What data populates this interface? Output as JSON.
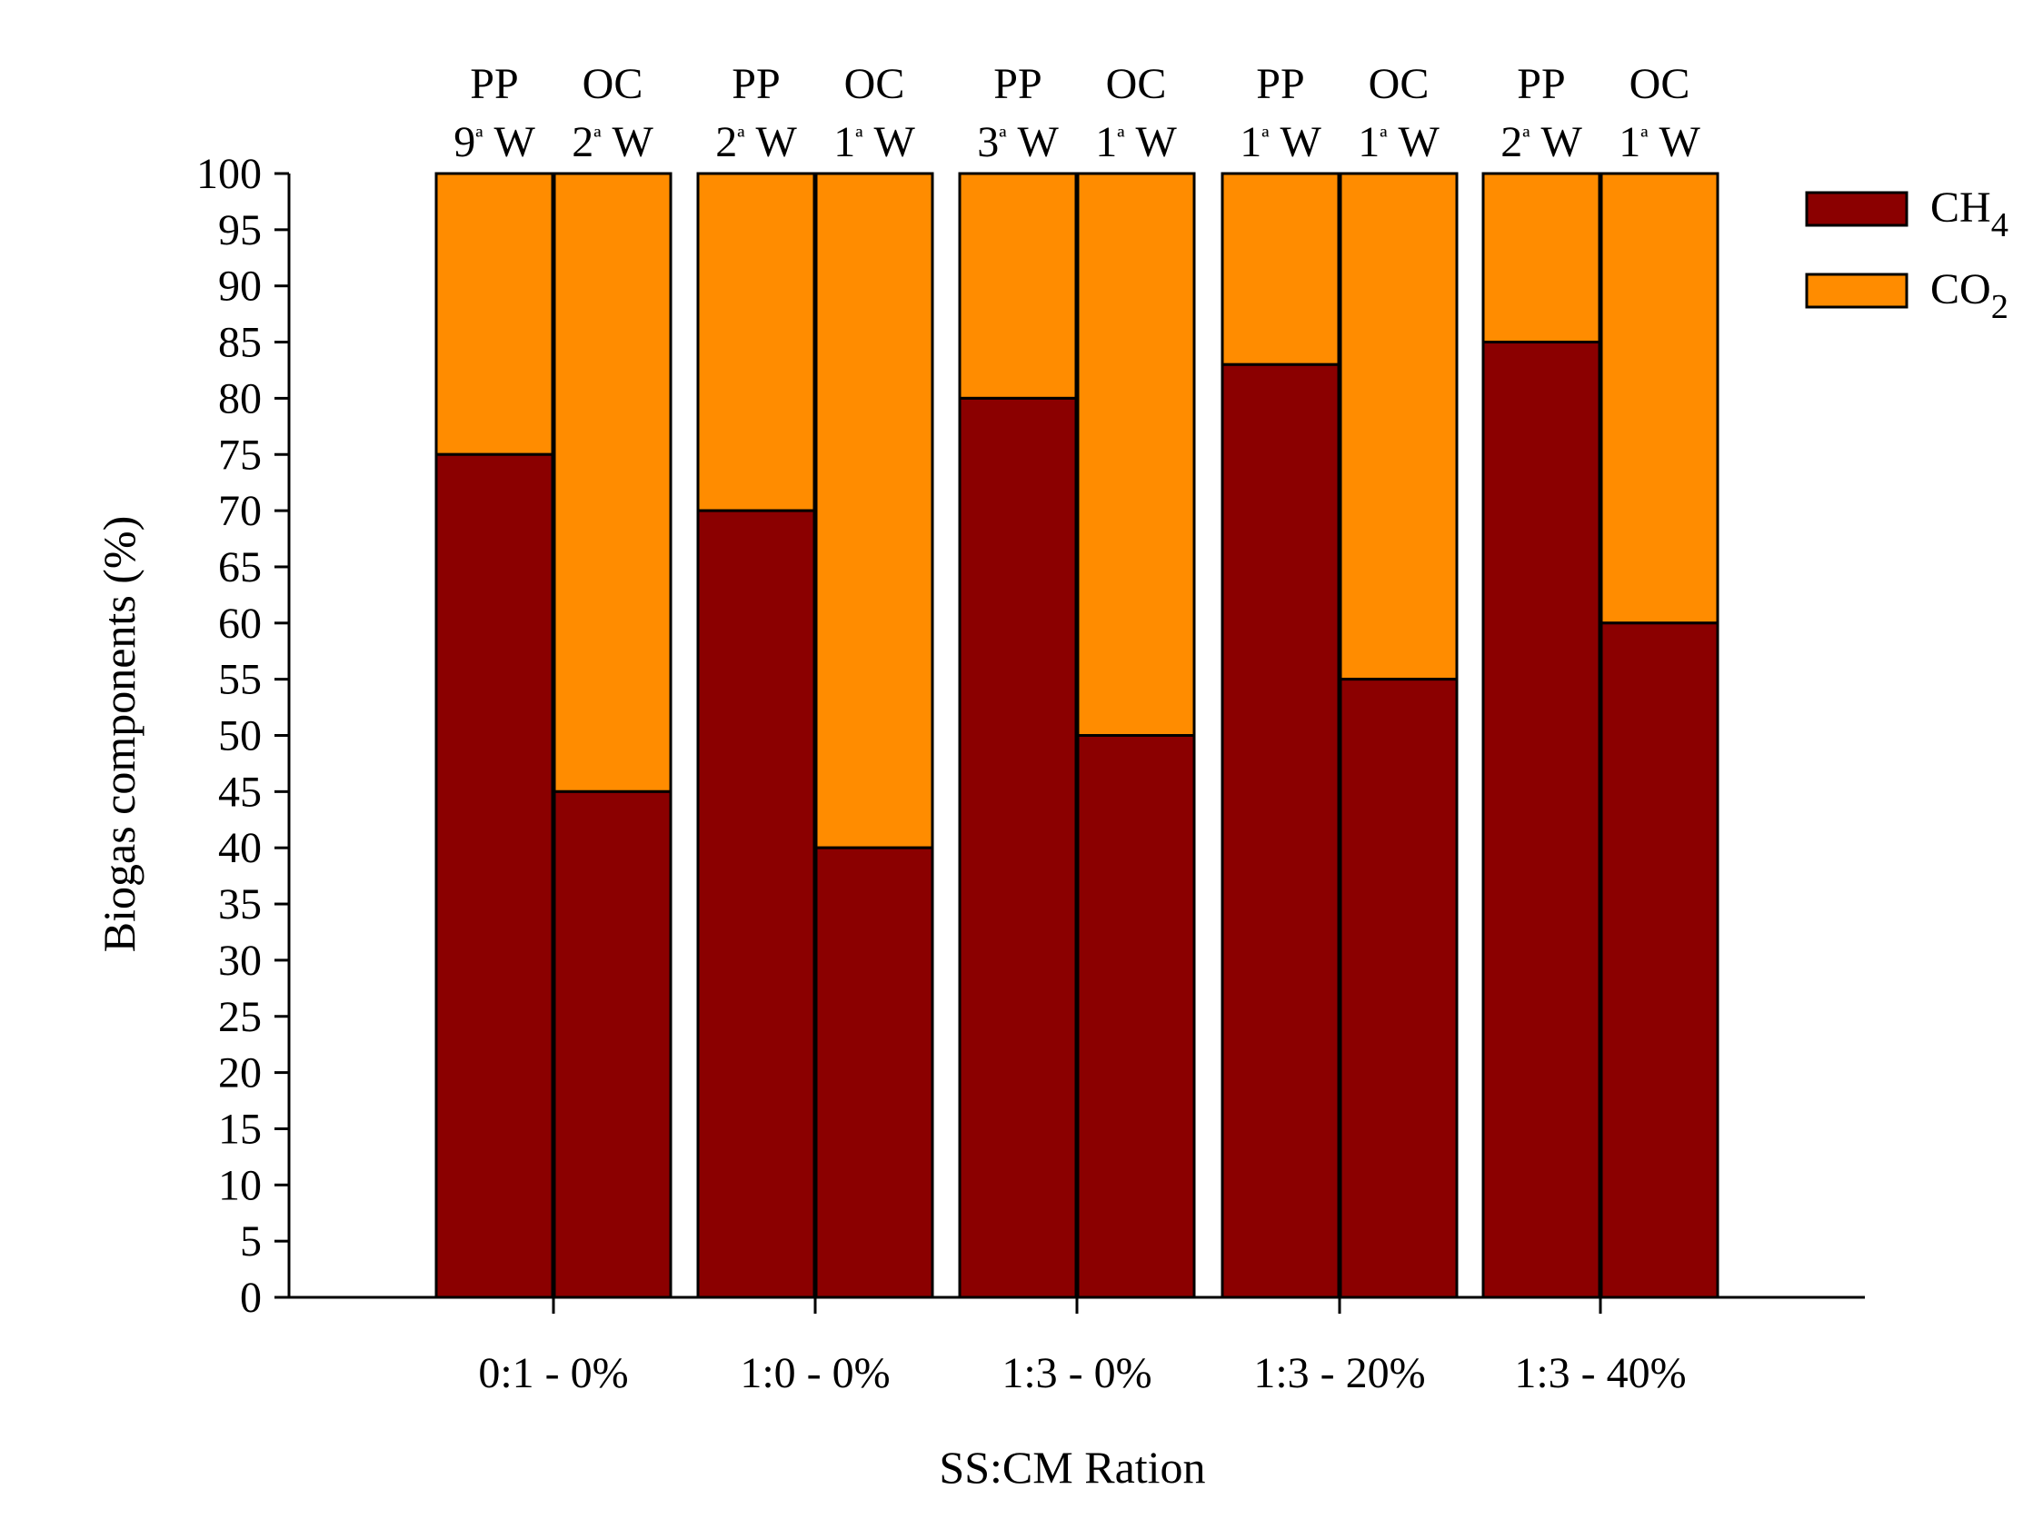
{
  "chart_data": {
    "type": "bar",
    "stacked": true,
    "title": "",
    "xlabel": "SS:CM Ration",
    "ylabel": "Biogas components (%)",
    "ylim": [
      0,
      100
    ],
    "ytick_step": 5,
    "groups": [
      {
        "category": "0:1 - 0%",
        "bars": [
          {
            "line1": "PP",
            "line2_num": "9",
            "line2_ord": "ª",
            "line2_unit": "W",
            "ch4": 75,
            "co2": 25
          },
          {
            "line1": "OC",
            "line2_num": "2",
            "line2_ord": "ª",
            "line2_unit": "W",
            "ch4": 45,
            "co2": 55
          }
        ]
      },
      {
        "category": "1:0 - 0%",
        "bars": [
          {
            "line1": "PP",
            "line2_num": "2",
            "line2_ord": "ª",
            "line2_unit": "W",
            "ch4": 70,
            "co2": 30
          },
          {
            "line1": "OC",
            "line2_num": "1",
            "line2_ord": "ª",
            "line2_unit": "W",
            "ch4": 40,
            "co2": 60
          }
        ]
      },
      {
        "category": "1:3 - 0%",
        "bars": [
          {
            "line1": "PP",
            "line2_num": "3",
            "line2_ord": "ª",
            "line2_unit": "W",
            "ch4": 80,
            "co2": 20
          },
          {
            "line1": "OC",
            "line2_num": "1",
            "line2_ord": "ª",
            "line2_unit": "W",
            "ch4": 50,
            "co2": 50
          }
        ]
      },
      {
        "category": "1:3 - 20%",
        "bars": [
          {
            "line1": "PP",
            "line2_num": "1",
            "line2_ord": "ª",
            "line2_unit": "W",
            "ch4": 83,
            "co2": 17
          },
          {
            "line1": "OC",
            "line2_num": "1",
            "line2_ord": "ª",
            "line2_unit": "W",
            "ch4": 55,
            "co2": 45
          }
        ]
      },
      {
        "category": "1:3 - 40%",
        "bars": [
          {
            "line1": "PP",
            "line2_num": "2",
            "line2_ord": "ª",
            "line2_unit": "W",
            "ch4": 85,
            "co2": 15
          },
          {
            "line1": "OC",
            "line2_num": "1",
            "line2_ord": "ª",
            "line2_unit": "W",
            "ch4": 60,
            "co2": 40
          }
        ]
      }
    ],
    "series": [
      {
        "name": "CH4",
        "base": "CH",
        "sub": "4",
        "color": "#8b0000"
      },
      {
        "name": "CO2",
        "base": "CO",
        "sub": "2",
        "color": "#ff8c00"
      }
    ],
    "legend_position": "top-right"
  }
}
